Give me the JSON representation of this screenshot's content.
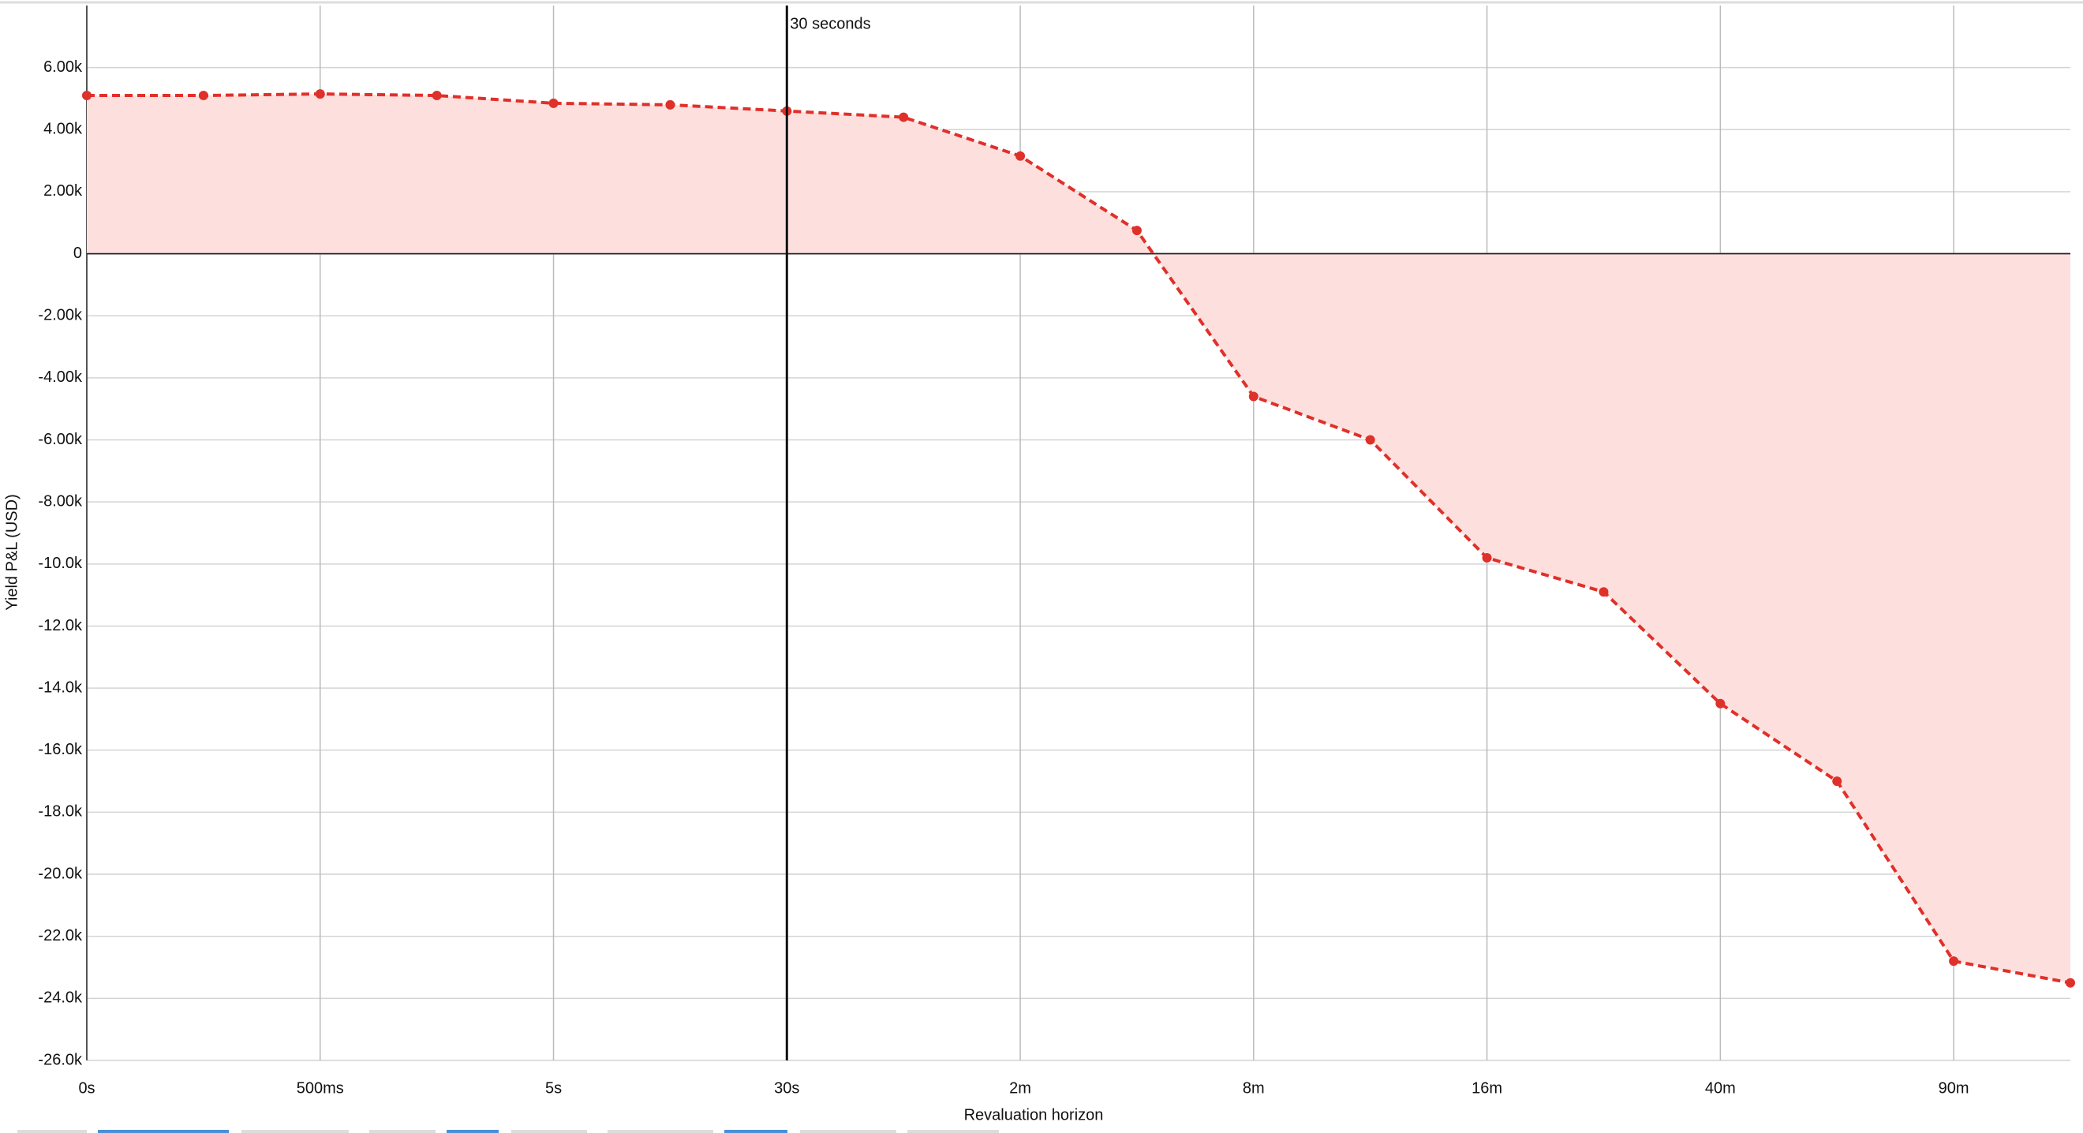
{
  "chart_data": {
    "type": "area",
    "y_label": "Yield P&L (USD)",
    "x_label": "Revaluation horizon",
    "categories": [
      "0s",
      null,
      "500ms",
      null,
      "5s",
      null,
      "30s",
      null,
      "2m",
      null,
      "8m",
      null,
      "16m",
      null,
      "40m",
      null,
      "90m",
      null
    ],
    "series": [
      {
        "color": "#e0302a",
        "fill": "#fde0de",
        "values": [
          5100,
          5100,
          5150,
          5100,
          4850,
          4800,
          4600,
          4400,
          3150,
          750,
          -4600,
          -6000,
          -9800,
          -10900,
          -14500,
          -17000,
          -22800,
          -23500
        ]
      }
    ],
    "ylim": [
      -26000,
      8000
    ],
    "yticks": [
      {
        "value": 6000,
        "label": "6.00k"
      },
      {
        "value": 4000,
        "label": "4.00k"
      },
      {
        "value": 2000,
        "label": "2.00k"
      },
      0,
      {
        "value": -2000,
        "label": "-2.00k"
      },
      {
        "value": -4000,
        "label": "-4.00k"
      },
      {
        "value": -6000,
        "label": "-6.00k"
      },
      {
        "value": -8000,
        "label": "-8.00k"
      },
      {
        "value": -10000,
        "label": "-10.0k"
      },
      {
        "value": -12000,
        "label": "-12.0k"
      },
      {
        "value": -14000,
        "label": "-14.0k"
      },
      {
        "value": -16000,
        "label": "-16.0k"
      },
      {
        "value": -18000,
        "label": "-18.0k"
      },
      {
        "value": -20000,
        "label": "-20.0k"
      },
      {
        "value": -22000,
        "label": "-22.0k"
      },
      {
        "value": -24000,
        "label": "-24.0k"
      },
      {
        "value": -26000,
        "label": "-26.0k"
      }
    ],
    "grid": true,
    "annotations": [
      {
        "text": "30 seconds",
        "x": "30s"
      }
    ]
  }
}
